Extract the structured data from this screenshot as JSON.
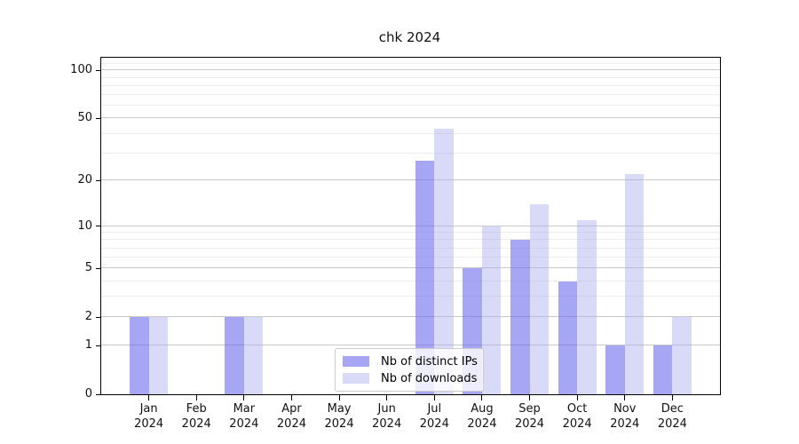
{
  "chart_data": {
    "type": "bar",
    "title": "chk 2024",
    "categories": [
      {
        "label": "Jan",
        "sublabel": "2024"
      },
      {
        "label": "Feb",
        "sublabel": "2024"
      },
      {
        "label": "Mar",
        "sublabel": "2024"
      },
      {
        "label": "Apr",
        "sublabel": "2024"
      },
      {
        "label": "May",
        "sublabel": "2024"
      },
      {
        "label": "Jun",
        "sublabel": "2024"
      },
      {
        "label": "Jul",
        "sublabel": "2024"
      },
      {
        "label": "Aug",
        "sublabel": "2024"
      },
      {
        "label": "Sep",
        "sublabel": "2024"
      },
      {
        "label": "Oct",
        "sublabel": "2024"
      },
      {
        "label": "Nov",
        "sublabel": "2024"
      },
      {
        "label": "Dec",
        "sublabel": "2024"
      }
    ],
    "series": [
      {
        "name": "Nb of distinct IPs",
        "color": "rgba(107,107,239,0.6)",
        "values": [
          2,
          0,
          2,
          0,
          0,
          0,
          27,
          5,
          8,
          4,
          1,
          1
        ]
      },
      {
        "name": "Nb of downloads",
        "color": "rgba(171,171,240,0.45)",
        "values": [
          2,
          0,
          2,
          0,
          0,
          0,
          43,
          10,
          14,
          11,
          22,
          2
        ]
      }
    ],
    "yscale": "log1p",
    "ylim": [
      0,
      120
    ],
    "yticks": [
      0,
      1,
      2,
      5,
      10,
      20,
      50,
      100
    ],
    "minor_gridlines": [
      3,
      4,
      6,
      7,
      8,
      9,
      30,
      40,
      60,
      70,
      80,
      90,
      110
    ],
    "legend_position": "bottom-center",
    "grid": true
  }
}
